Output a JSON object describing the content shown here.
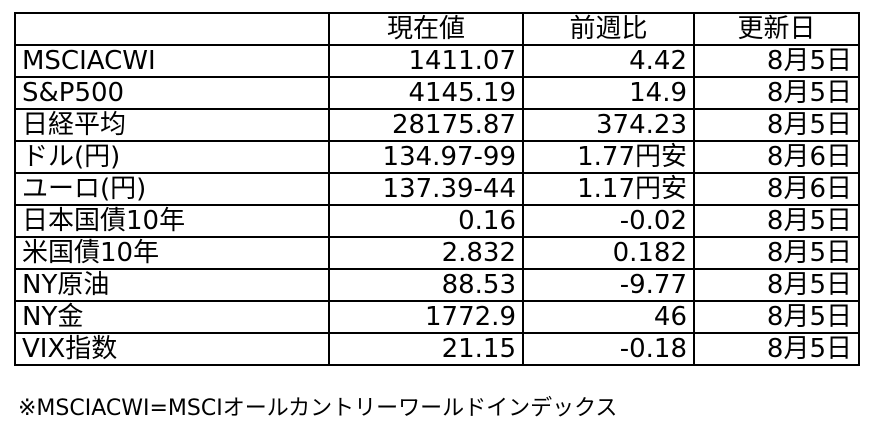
{
  "table": {
    "header": [
      "現在値",
      "前週比",
      "更新日"
    ],
    "rows": [
      [
        "MSCIACWI",
        "1411.07",
        "4.42",
        "8月5日"
      ],
      [
        "S&P500",
        "4145.19",
        "14.9",
        "8月5日"
      ],
      [
        "日経平均",
        "28175.87",
        "374.23",
        "8月5日"
      ],
      [
        "ドル(円)",
        "134.97-99",
        "1.77円安",
        "8月6日"
      ],
      [
        "ユーロ(円)",
        "137.39-44",
        "1.17円安",
        "8月6日"
      ],
      [
        "日本国債10年",
        "0.16",
        "-0.02",
        "8月5日"
      ],
      [
        "米国債10年",
        "2.832",
        "0.182",
        "8月5日"
      ],
      [
        "NY原油",
        "88.53",
        "-9.77",
        "8月5日"
      ],
      [
        "NY金",
        "1772.9",
        "46",
        "8月5日"
      ],
      [
        "VIX指数",
        "21.15",
        "-0.18",
        "8月5日"
      ]
    ]
  },
  "footnote": "※MSCIACWI=MSCIオールカントリーワールドインデックス"
}
